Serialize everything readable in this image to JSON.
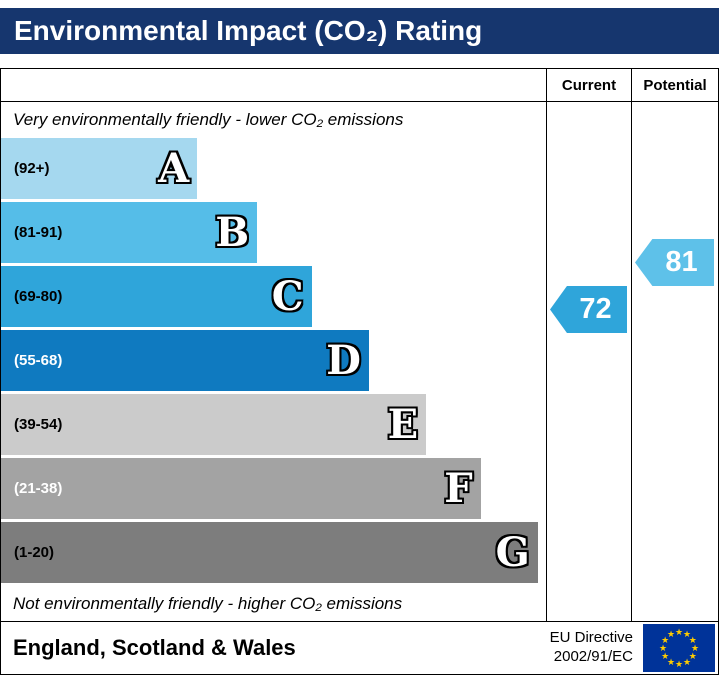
{
  "title": "Environmental Impact (CO₂) Rating",
  "colors": {
    "title_bar": "#16366e"
  },
  "header": {
    "current": "Current",
    "potential": "Potential"
  },
  "notes": {
    "top": "Very environmentally friendly - lower CO₂ emissions",
    "bottom": "Not environmentally friendly - higher CO₂ emissions"
  },
  "bands": [
    {
      "letter": "A",
      "range": "(92+)",
      "color": "#a5d8ef",
      "width": "36%",
      "label_color": "#000000"
    },
    {
      "letter": "B",
      "range": "(81-91)",
      "color": "#55bde8",
      "width": "47%",
      "label_color": "#000000"
    },
    {
      "letter": "C",
      "range": "(69-80)",
      "color": "#2fa5da",
      "width": "57%",
      "label_color": "#000000"
    },
    {
      "letter": "D",
      "range": "(55-68)",
      "color": "#0f7ac0",
      "width": "67.5%",
      "label_color": "#ffffff"
    },
    {
      "letter": "E",
      "range": "(39-54)",
      "color": "#cbcbcb",
      "width": "78%",
      "label_color": "#000000"
    },
    {
      "letter": "F",
      "range": "(21-38)",
      "color": "#a3a3a3",
      "width": "88%",
      "label_color": "#ffffff"
    },
    {
      "letter": "G",
      "range": "(1-20)",
      "color": "#7d7d7d",
      "width": "98.5%",
      "label_color": "#000000"
    }
  ],
  "current": {
    "label": "72",
    "color": "#2fa5da"
  },
  "potential": {
    "label": "81",
    "color": "#5ec1e9"
  },
  "footer": {
    "region": "England, Scotland & Wales",
    "directive_line1": "EU Directive",
    "directive_line2": "2002/91/EC",
    "flag": {
      "stars": 12,
      "glyph": "★",
      "background": "#003399",
      "star_color": "#ffcc00"
    }
  },
  "chart_data": {
    "type": "bar",
    "orientation": "horizontal",
    "title": "Environmental Impact (CO₂) Rating",
    "categories": [
      "A",
      "B",
      "C",
      "D",
      "E",
      "F",
      "G"
    ],
    "band_ranges": [
      "92+",
      "81-91",
      "69-80",
      "55-68",
      "39-54",
      "21-38",
      "1-20"
    ],
    "bar_lengths_pct": [
      36,
      47,
      57,
      67.5,
      78,
      88,
      98.5
    ],
    "band_colors": [
      "#a5d8ef",
      "#55bde8",
      "#2fa5da",
      "#0f7ac0",
      "#cbcbcb",
      "#a3a3a3",
      "#7d7d7d"
    ],
    "markers": [
      {
        "name": "Current",
        "value": 72,
        "band": "C",
        "color": "#2fa5da"
      },
      {
        "name": "Potential",
        "value": 81,
        "band": "B",
        "color": "#5ec1e9"
      }
    ],
    "top_label": "Very environmentally friendly - lower CO₂ emissions",
    "bottom_label": "Not environmentally friendly - higher CO₂ emissions",
    "legend_position": "none",
    "region_label": "England, Scotland & Wales",
    "directive": "EU Directive 2002/91/EC"
  }
}
